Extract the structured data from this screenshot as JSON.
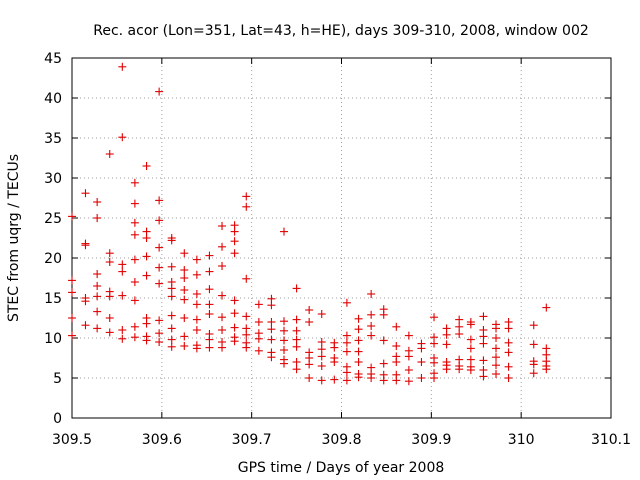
{
  "chart_data": {
    "type": "scatter",
    "title": "Rec. acor (Lon=351, Lat=43, h=HE), days 309-310, 2008, window 002",
    "xlabel": "GPS time / Days of year 2008",
    "ylabel": "STEC from uqrg / TECUs",
    "xlim": [
      309.5,
      310.1
    ],
    "ylim": [
      0,
      45
    ],
    "xticks": [
      "309.5",
      "309.6",
      "309.7",
      "309.8",
      "309.9",
      "310",
      "310.1"
    ],
    "yticks": [
      "0",
      "5",
      "10",
      "15",
      "20",
      "25",
      "30",
      "35",
      "40",
      "45"
    ],
    "marker": "+",
    "color": "#e00000",
    "grid": true,
    "points": [
      [
        309.5,
        17.2
      ],
      [
        309.5,
        15.7
      ],
      [
        309.5,
        25.2
      ],
      [
        309.5,
        12.5
      ],
      [
        309.5,
        10.3
      ],
      [
        309.515,
        28.1
      ],
      [
        309.515,
        21.6
      ],
      [
        309.515,
        21.8
      ],
      [
        309.515,
        15.0
      ],
      [
        309.515,
        14.6
      ],
      [
        309.515,
        11.6
      ],
      [
        309.528,
        27.0
      ],
      [
        309.528,
        25.0
      ],
      [
        309.528,
        18.0
      ],
      [
        309.528,
        16.5
      ],
      [
        309.528,
        15.2
      ],
      [
        309.528,
        13.3
      ],
      [
        309.528,
        11.2
      ],
      [
        309.542,
        33.0
      ],
      [
        309.542,
        20.6
      ],
      [
        309.542,
        19.5
      ],
      [
        309.542,
        15.8
      ],
      [
        309.542,
        15.2
      ],
      [
        309.542,
        12.5
      ],
      [
        309.542,
        10.7
      ],
      [
        309.556,
        43.9
      ],
      [
        309.556,
        35.1
      ],
      [
        309.556,
        19.2
      ],
      [
        309.556,
        18.3
      ],
      [
        309.556,
        15.3
      ],
      [
        309.556,
        11.0
      ],
      [
        309.556,
        9.9
      ],
      [
        309.57,
        29.4
      ],
      [
        309.57,
        26.8
      ],
      [
        309.57,
        24.4
      ],
      [
        309.57,
        22.9
      ],
      [
        309.57,
        19.8
      ],
      [
        309.57,
        17.0
      ],
      [
        309.57,
        14.7
      ],
      [
        309.57,
        11.4
      ],
      [
        309.57,
        10.1
      ],
      [
        309.583,
        31.5
      ],
      [
        309.583,
        23.3
      ],
      [
        309.583,
        22.5
      ],
      [
        309.583,
        20.2
      ],
      [
        309.583,
        17.8
      ],
      [
        309.583,
        12.5
      ],
      [
        309.583,
        11.8
      ],
      [
        309.583,
        10.2
      ],
      [
        309.583,
        9.7
      ],
      [
        309.597,
        40.8
      ],
      [
        309.597,
        27.2
      ],
      [
        309.597,
        24.7
      ],
      [
        309.597,
        21.3
      ],
      [
        309.597,
        18.8
      ],
      [
        309.597,
        16.8
      ],
      [
        309.597,
        12.2
      ],
      [
        309.597,
        10.6
      ],
      [
        309.597,
        9.5
      ],
      [
        309.611,
        22.5
      ],
      [
        309.611,
        22.2
      ],
      [
        309.611,
        18.9
      ],
      [
        309.611,
        17.0
      ],
      [
        309.611,
        16.2
      ],
      [
        309.611,
        15.2
      ],
      [
        309.611,
        12.8
      ],
      [
        309.611,
        11.2
      ],
      [
        309.611,
        9.8
      ],
      [
        309.611,
        8.9
      ],
      [
        309.625,
        20.6
      ],
      [
        309.625,
        18.5
      ],
      [
        309.625,
        17.5
      ],
      [
        309.625,
        16.0
      ],
      [
        309.625,
        14.8
      ],
      [
        309.625,
        12.5
      ],
      [
        309.625,
        10.2
      ],
      [
        309.625,
        9.0
      ],
      [
        309.639,
        19.8
      ],
      [
        309.639,
        17.9
      ],
      [
        309.639,
        15.5
      ],
      [
        309.639,
        14.2
      ],
      [
        309.639,
        12.3
      ],
      [
        309.639,
        11.0
      ],
      [
        309.639,
        9.1
      ],
      [
        309.639,
        8.7
      ],
      [
        309.653,
        20.3
      ],
      [
        309.653,
        18.3
      ],
      [
        309.653,
        16.1
      ],
      [
        309.653,
        14.2
      ],
      [
        309.653,
        13.0
      ],
      [
        309.653,
        10.5
      ],
      [
        309.653,
        9.8
      ],
      [
        309.653,
        8.8
      ],
      [
        309.667,
        24.0
      ],
      [
        309.667,
        21.4
      ],
      [
        309.667,
        19.0
      ],
      [
        309.667,
        15.3
      ],
      [
        309.667,
        12.6
      ],
      [
        309.667,
        11.0
      ],
      [
        309.667,
        9.5
      ],
      [
        309.667,
        8.8
      ],
      [
        309.681,
        24.1
      ],
      [
        309.681,
        23.3
      ],
      [
        309.681,
        22.1
      ],
      [
        309.681,
        20.6
      ],
      [
        309.681,
        14.7
      ],
      [
        309.681,
        13.1
      ],
      [
        309.681,
        11.3
      ],
      [
        309.681,
        10.1
      ],
      [
        309.681,
        9.6
      ],
      [
        309.694,
        27.7
      ],
      [
        309.694,
        26.4
      ],
      [
        309.694,
        17.4
      ],
      [
        309.694,
        12.7
      ],
      [
        309.694,
        11.2
      ],
      [
        309.694,
        10.4
      ],
      [
        309.694,
        9.4
      ],
      [
        309.694,
        8.8
      ],
      [
        309.708,
        14.2
      ],
      [
        309.708,
        12.0
      ],
      [
        309.708,
        10.6
      ],
      [
        309.708,
        9.9
      ],
      [
        309.708,
        8.4
      ],
      [
        309.722,
        14.9
      ],
      [
        309.722,
        14.1
      ],
      [
        309.722,
        12.0
      ],
      [
        309.722,
        11.1
      ],
      [
        309.722,
        9.8
      ],
      [
        309.722,
        8.2
      ],
      [
        309.722,
        7.6
      ],
      [
        309.736,
        23.3
      ],
      [
        309.736,
        12.1
      ],
      [
        309.736,
        10.9
      ],
      [
        309.736,
        9.7
      ],
      [
        309.736,
        8.5
      ],
      [
        309.736,
        7.3
      ],
      [
        309.736,
        6.8
      ],
      [
        309.75,
        16.2
      ],
      [
        309.75,
        12.3
      ],
      [
        309.75,
        10.9
      ],
      [
        309.75,
        9.8
      ],
      [
        309.75,
        8.9
      ],
      [
        309.75,
        7.0
      ],
      [
        309.75,
        6.1
      ],
      [
        309.764,
        13.5
      ],
      [
        309.764,
        12.0
      ],
      [
        309.764,
        8.2
      ],
      [
        309.764,
        7.5
      ],
      [
        309.764,
        6.7
      ],
      [
        309.764,
        5.0
      ],
      [
        309.778,
        13.0
      ],
      [
        309.778,
        9.5
      ],
      [
        309.778,
        8.6
      ],
      [
        309.778,
        7.7
      ],
      [
        309.778,
        6.5
      ],
      [
        309.778,
        4.7
      ],
      [
        309.792,
        9.4
      ],
      [
        309.792,
        8.8
      ],
      [
        309.792,
        7.5
      ],
      [
        309.792,
        7.0
      ],
      [
        309.792,
        4.8
      ],
      [
        309.806,
        14.4
      ],
      [
        309.806,
        10.3
      ],
      [
        309.806,
        9.4
      ],
      [
        309.806,
        8.3
      ],
      [
        309.806,
        6.4
      ],
      [
        309.806,
        5.7
      ],
      [
        309.806,
        4.7
      ],
      [
        309.819,
        12.4
      ],
      [
        309.819,
        11.1
      ],
      [
        309.819,
        9.7
      ],
      [
        309.819,
        8.3
      ],
      [
        309.819,
        7.0
      ],
      [
        309.819,
        5.5
      ],
      [
        309.819,
        5.1
      ],
      [
        309.833,
        15.5
      ],
      [
        309.833,
        12.9
      ],
      [
        309.833,
        11.5
      ],
      [
        309.833,
        10.3
      ],
      [
        309.833,
        6.3
      ],
      [
        309.833,
        5.5
      ],
      [
        309.833,
        5.0
      ],
      [
        309.847,
        13.6
      ],
      [
        309.847,
        12.9
      ],
      [
        309.847,
        9.7
      ],
      [
        309.847,
        6.8
      ],
      [
        309.847,
        5.4
      ],
      [
        309.847,
        4.7
      ],
      [
        309.861,
        11.4
      ],
      [
        309.861,
        9.0
      ],
      [
        309.861,
        7.7
      ],
      [
        309.861,
        7.0
      ],
      [
        309.861,
        5.4
      ],
      [
        309.861,
        4.7
      ],
      [
        309.875,
        10.3
      ],
      [
        309.875,
        8.4
      ],
      [
        309.875,
        7.7
      ],
      [
        309.875,
        6.0
      ],
      [
        309.875,
        4.6
      ],
      [
        309.889,
        9.3
      ],
      [
        309.889,
        8.7
      ],
      [
        309.889,
        7.0
      ],
      [
        309.889,
        5.0
      ],
      [
        309.903,
        12.6
      ],
      [
        309.903,
        10.1
      ],
      [
        309.903,
        9.3
      ],
      [
        309.903,
        7.5
      ],
      [
        309.903,
        6.9
      ],
      [
        309.903,
        5.6
      ],
      [
        309.903,
        5.0
      ],
      [
        309.917,
        11.2
      ],
      [
        309.917,
        10.4
      ],
      [
        309.917,
        9.2
      ],
      [
        309.917,
        7.0
      ],
      [
        309.917,
        6.6
      ],
      [
        309.917,
        6.1
      ],
      [
        309.931,
        12.3
      ],
      [
        309.931,
        11.4
      ],
      [
        309.931,
        10.5
      ],
      [
        309.931,
        7.3
      ],
      [
        309.931,
        6.5
      ],
      [
        309.931,
        6.1
      ],
      [
        309.944,
        12.0
      ],
      [
        309.944,
        11.7
      ],
      [
        309.944,
        9.8
      ],
      [
        309.944,
        8.7
      ],
      [
        309.944,
        7.3
      ],
      [
        309.944,
        6.4
      ],
      [
        309.944,
        6.0
      ],
      [
        309.958,
        12.7
      ],
      [
        309.958,
        11.0
      ],
      [
        309.958,
        10.2
      ],
      [
        309.958,
        9.3
      ],
      [
        309.958,
        7.2
      ],
      [
        309.958,
        6.0
      ],
      [
        309.958,
        5.2
      ],
      [
        309.972,
        11.7
      ],
      [
        309.972,
        11.2
      ],
      [
        309.972,
        10.0
      ],
      [
        309.972,
        8.7
      ],
      [
        309.972,
        7.6
      ],
      [
        309.972,
        6.6
      ],
      [
        309.972,
        5.5
      ],
      [
        309.986,
        12.0
      ],
      [
        309.986,
        11.2
      ],
      [
        309.986,
        9.4
      ],
      [
        309.986,
        8.2
      ],
      [
        309.986,
        6.4
      ],
      [
        309.986,
        5.0
      ],
      [
        310.014,
        11.6
      ],
      [
        310.014,
        9.2
      ],
      [
        310.014,
        7.1
      ],
      [
        310.014,
        6.7
      ],
      [
        310.014,
        5.6
      ],
      [
        310.028,
        13.8
      ],
      [
        310.028,
        8.7
      ],
      [
        310.028,
        7.9
      ],
      [
        310.028,
        7.1
      ],
      [
        310.028,
        6.5
      ],
      [
        310.028,
        6.1
      ]
    ]
  }
}
